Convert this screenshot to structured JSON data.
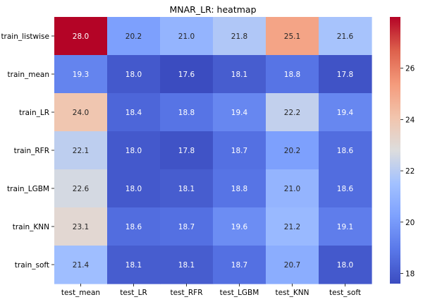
{
  "chart_data": {
    "type": "heatmap",
    "title": "MNAR_LR: heatmap",
    "columns": [
      "test_mean",
      "test_LR",
      "test_RFR",
      "test_LGBM",
      "test_KNN",
      "test_soft"
    ],
    "rows": [
      "train_listwise",
      "train_mean",
      "train_LR",
      "train_RFR",
      "train_LGBM",
      "train_KNN",
      "train_soft"
    ],
    "values": [
      [
        28.0,
        20.2,
        21.0,
        21.8,
        25.1,
        21.6
      ],
      [
        19.3,
        18.0,
        17.6,
        18.1,
        18.8,
        17.8
      ],
      [
        24.0,
        18.4,
        18.8,
        19.4,
        22.2,
        19.4
      ],
      [
        22.1,
        18.0,
        17.8,
        18.7,
        20.2,
        18.6
      ],
      [
        22.6,
        18.0,
        18.1,
        18.8,
        21.0,
        18.6
      ],
      [
        23.1,
        18.6,
        18.7,
        19.6,
        21.2,
        19.1
      ],
      [
        21.4,
        18.1,
        18.1,
        18.7,
        20.7,
        18.0
      ]
    ],
    "colorbar": {
      "colormap": "coolwarm",
      "range": [
        17.6,
        28.0
      ],
      "ticks": [
        18,
        20,
        22,
        24,
        26
      ]
    },
    "value_format": "one decimal",
    "grid": false,
    "legend": "colorbar-right"
  }
}
